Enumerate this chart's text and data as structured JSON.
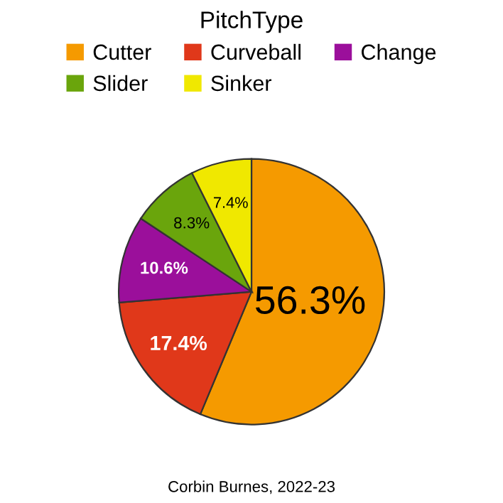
{
  "chart_data": {
    "type": "pie",
    "legend_title": "PitchType",
    "legend": "top",
    "categories": [
      "Cutter",
      "Curveball",
      "Change",
      "Slider",
      "Sinker"
    ],
    "values": [
      56.3,
      17.4,
      10.6,
      8.3,
      7.4
    ],
    "value_labels": [
      "56.3%",
      "17.4%",
      "10.6%",
      "8.3%",
      "7.4%"
    ],
    "colors": [
      "#f59a00",
      "#e0381a",
      "#9b0f9b",
      "#6aa50c",
      "#f0e800"
    ],
    "annotations": [
      "Corbin Burnes, 2022-23"
    ]
  }
}
